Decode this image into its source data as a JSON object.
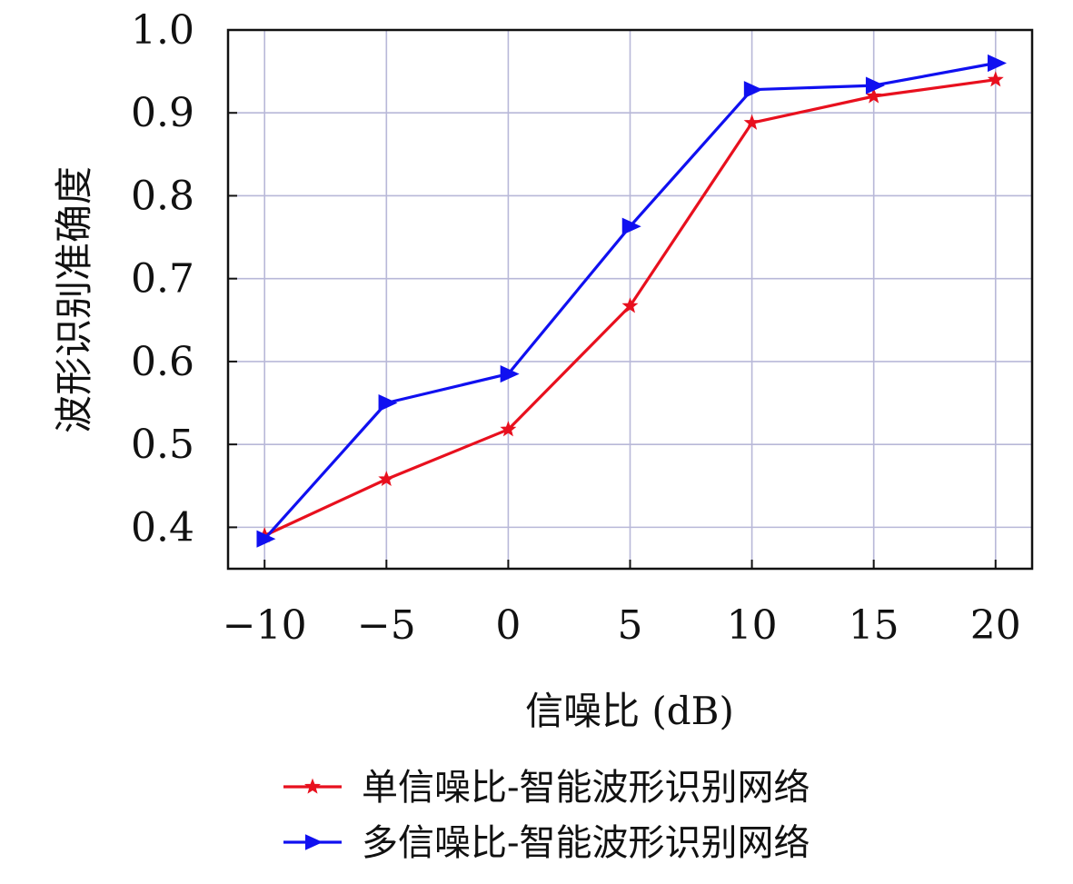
{
  "chart_data": {
    "type": "line",
    "x": [
      -10,
      -5,
      0,
      5,
      10,
      15,
      20
    ],
    "x_tick_labels": [
      "−10",
      "−5",
      "0",
      "5",
      "10",
      "15",
      "20"
    ],
    "y_tick_values": [
      0.4,
      0.5,
      0.6,
      0.7,
      0.8,
      0.9,
      1.0
    ],
    "y_tick_labels": [
      "0.4",
      "0.5",
      "0.6",
      "0.7",
      "0.8",
      "0.9",
      "1.0"
    ],
    "xlim": [
      -11.5,
      21.5
    ],
    "ylim": [
      0.35,
      1.0
    ],
    "xlabel": "信噪比 (dB)",
    "ylabel": "波形识别准确度",
    "grid": true,
    "legend_position": "bottom-center, below plot",
    "series": [
      {
        "name": "单信噪比-智能波形识别网络",
        "color": "#e8101e",
        "marker": "star",
        "values": [
          0.39,
          0.458,
          0.518,
          0.667,
          0.888,
          0.92,
          0.94
        ]
      },
      {
        "name": "多信噪比-智能波形识别网络",
        "color": "#1010f0",
        "marker": "triangle-right",
        "values": [
          0.386,
          0.55,
          0.585,
          0.763,
          0.928,
          0.933,
          0.96
        ]
      }
    ]
  }
}
